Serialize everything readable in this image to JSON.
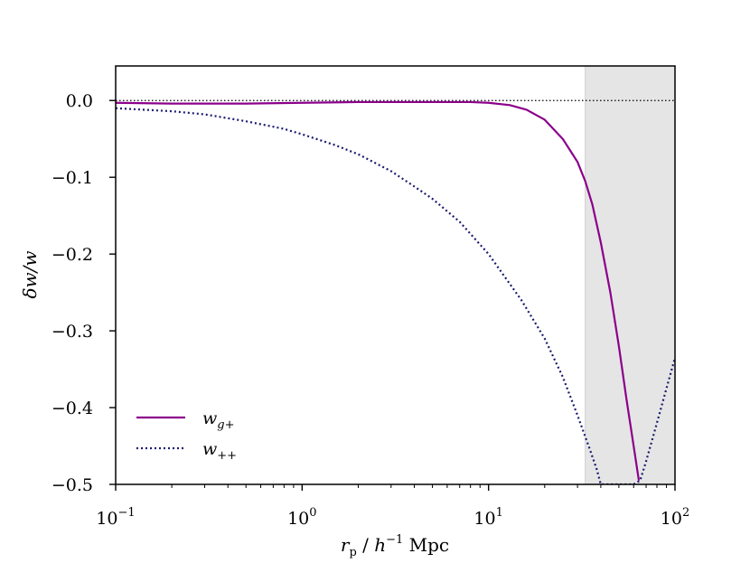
{
  "chart_data": {
    "type": "line",
    "xscale": "log",
    "xlim": [
      0.1,
      100
    ],
    "ylim": [
      -0.5,
      0.045
    ],
    "xlabel": "r_p / h^-1 Mpc",
    "ylabel": "δw/w",
    "x_ticks": [
      {
        "value": 0.1,
        "base": "10",
        "exp": "−1"
      },
      {
        "value": 1,
        "base": "10",
        "exp": "0"
      },
      {
        "value": 10,
        "base": "10",
        "exp": "1"
      },
      {
        "value": 100,
        "base": "10",
        "exp": "2"
      }
    ],
    "y_ticks": [
      {
        "value": 0.0,
        "label": "0.0"
      },
      {
        "value": -0.1,
        "label": "−0.1"
      },
      {
        "value": -0.2,
        "label": "−0.2"
      },
      {
        "value": -0.3,
        "label": "−0.3"
      },
      {
        "value": -0.4,
        "label": "−0.4"
      },
      {
        "value": -0.5,
        "label": "−0.5"
      }
    ],
    "reference_line": {
      "y": 0.0,
      "style": "dotted",
      "color": "#000000"
    },
    "shaded_region": {
      "x": [
        33,
        100
      ],
      "color": "#e5e5e5"
    },
    "legend": {
      "placement": "lower-left"
    },
    "series": [
      {
        "name": "w_{g+}",
        "color": "#8b008b",
        "style": "solid",
        "x": [
          0.1,
          0.2,
          0.5,
          1,
          2,
          5,
          8,
          10,
          13,
          16,
          20,
          25,
          30,
          33,
          36,
          40,
          45,
          50,
          55,
          60,
          64
        ],
        "y": [
          -0.003,
          -0.004,
          -0.004,
          -0.003,
          -0.002,
          -0.002,
          -0.002,
          -0.003,
          -0.006,
          -0.012,
          -0.025,
          -0.05,
          -0.08,
          -0.105,
          -0.135,
          -0.185,
          -0.25,
          -0.32,
          -0.39,
          -0.45,
          -0.495
        ]
      },
      {
        "name": "w_{++}",
        "color": "#191970",
        "style": "dotted",
        "x": [
          0.1,
          0.2,
          0.3,
          0.5,
          0.8,
          1,
          1.5,
          2,
          3,
          4,
          5,
          7,
          10,
          15,
          20,
          25,
          30,
          35,
          38,
          40,
          45,
          50,
          55,
          60,
          65,
          70,
          80,
          90,
          100
        ],
        "y": [
          -0.01,
          -0.014,
          -0.018,
          -0.027,
          -0.037,
          -0.044,
          -0.058,
          -0.07,
          -0.092,
          -0.112,
          -0.128,
          -0.158,
          -0.2,
          -0.26,
          -0.31,
          -0.36,
          -0.41,
          -0.455,
          -0.48,
          -0.5,
          -0.5,
          -0.5,
          -0.5,
          -0.5,
          -0.495,
          -0.47,
          -0.42,
          -0.375,
          -0.335
        ]
      }
    ]
  }
}
